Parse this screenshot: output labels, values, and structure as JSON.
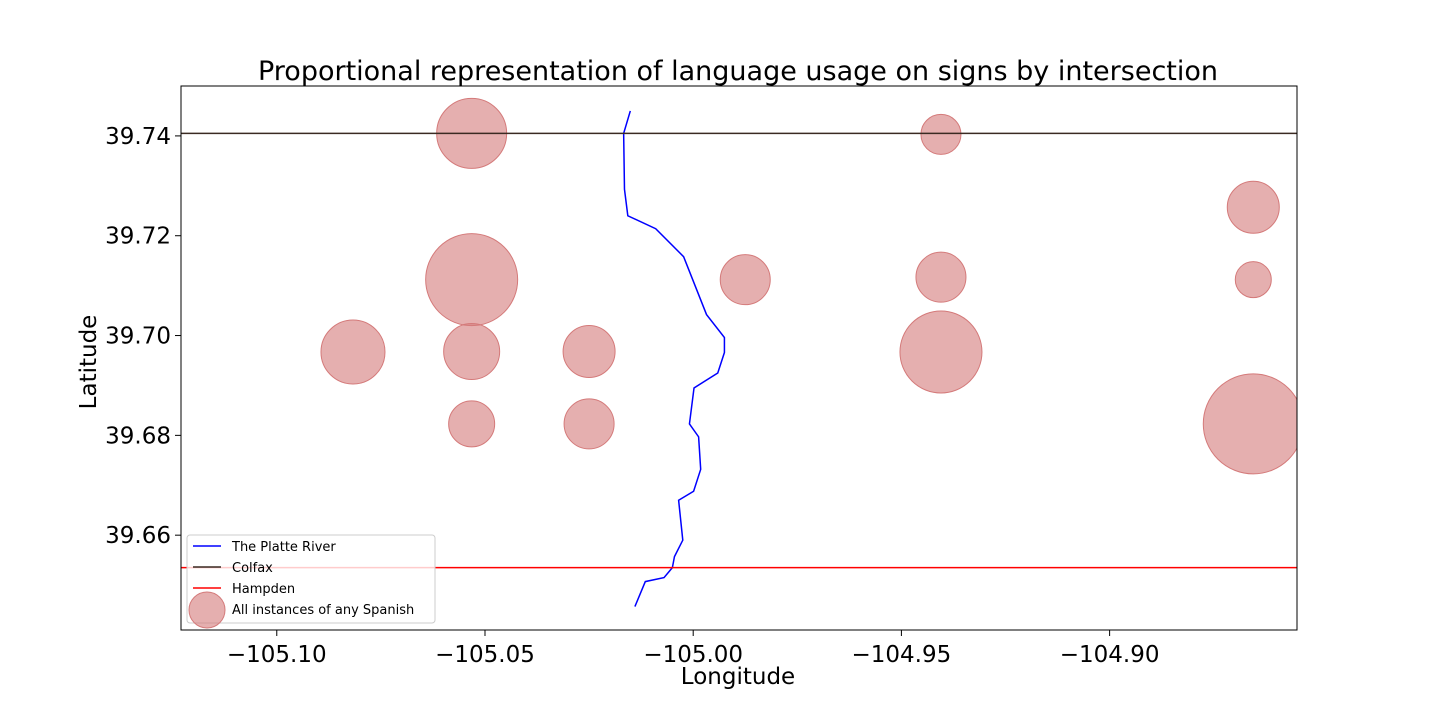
{
  "chart_data": {
    "type": "scatter",
    "title": "Proportional representation of language usage on signs by intersection",
    "xlabel": "Longitude",
    "ylabel": "Latitude",
    "xlim": [
      -105.123,
      -104.855
    ],
    "ylim": [
      39.641,
      39.75
    ],
    "x_ticks": [
      -105.1,
      -105.05,
      -105.0,
      -104.95,
      -104.9
    ],
    "x_tick_labels": [
      "−105.10",
      "−105.05",
      "−105.00",
      "−104.95",
      "−104.90"
    ],
    "y_ticks": [
      39.66,
      39.68,
      39.7,
      39.72,
      39.74
    ],
    "y_tick_labels": [
      "39.66",
      "39.68",
      "39.70",
      "39.72",
      "39.74"
    ],
    "grid": false,
    "legend_position": "lower-left",
    "lines": [
      {
        "name": "The Platte River",
        "color": "#0000ff",
        "points": [
          [
            -105.0151,
            39.745
          ],
          [
            -105.0167,
            39.7405
          ],
          [
            -105.0165,
            39.7293
          ],
          [
            -105.0157,
            39.724
          ],
          [
            -105.009,
            39.7214
          ],
          [
            -105.0023,
            39.7158
          ],
          [
            -104.9968,
            39.7042
          ],
          [
            -104.9925,
            39.6996
          ],
          [
            -104.9925,
            39.6966
          ],
          [
            -104.9941,
            39.6925
          ],
          [
            -104.9998,
            39.6895
          ],
          [
            -105.0009,
            39.6823
          ],
          [
            -104.9987,
            39.6797
          ],
          [
            -104.9982,
            39.6732
          ],
          [
            -104.9999,
            39.6688
          ],
          [
            -105.0035,
            39.667
          ],
          [
            -105.0025,
            39.659
          ],
          [
            -105.0045,
            39.6557
          ],
          [
            -105.005,
            39.6535
          ],
          [
            -105.007,
            39.6515
          ],
          [
            -105.0115,
            39.6507
          ],
          [
            -105.014,
            39.6457
          ]
        ]
      },
      {
        "name": "Colfax",
        "color": "#3a2a22",
        "y": 39.7405
      },
      {
        "name": "Hampden",
        "color": "#ff0000",
        "y": 39.6535
      }
    ],
    "scatter": {
      "name": "All instances of any Spanish",
      "color": "#d47a7a",
      "points": [
        {
          "x": -105.0532,
          "y": 39.7405,
          "size": 70
        },
        {
          "x": -105.0532,
          "y": 39.7112,
          "size": 92
        },
        {
          "x": -105.0532,
          "y": 39.6968,
          "size": 56
        },
        {
          "x": -105.0532,
          "y": 39.6823,
          "size": 46
        },
        {
          "x": -105.0817,
          "y": 39.6967,
          "size": 64
        },
        {
          "x": -105.025,
          "y": 39.6968,
          "size": 52
        },
        {
          "x": -105.025,
          "y": 39.6823,
          "size": 50
        },
        {
          "x": -104.9875,
          "y": 39.7112,
          "size": 50
        },
        {
          "x": -104.9405,
          "y": 39.7403,
          "size": 40
        },
        {
          "x": -104.9405,
          "y": 39.7117,
          "size": 50
        },
        {
          "x": -104.9405,
          "y": 39.6967,
          "size": 82
        },
        {
          "x": -104.8655,
          "y": 39.7257,
          "size": 52
        },
        {
          "x": -104.8655,
          "y": 39.7112,
          "size": 36
        },
        {
          "x": -104.8655,
          "y": 39.6823,
          "size": 100
        }
      ]
    }
  }
}
